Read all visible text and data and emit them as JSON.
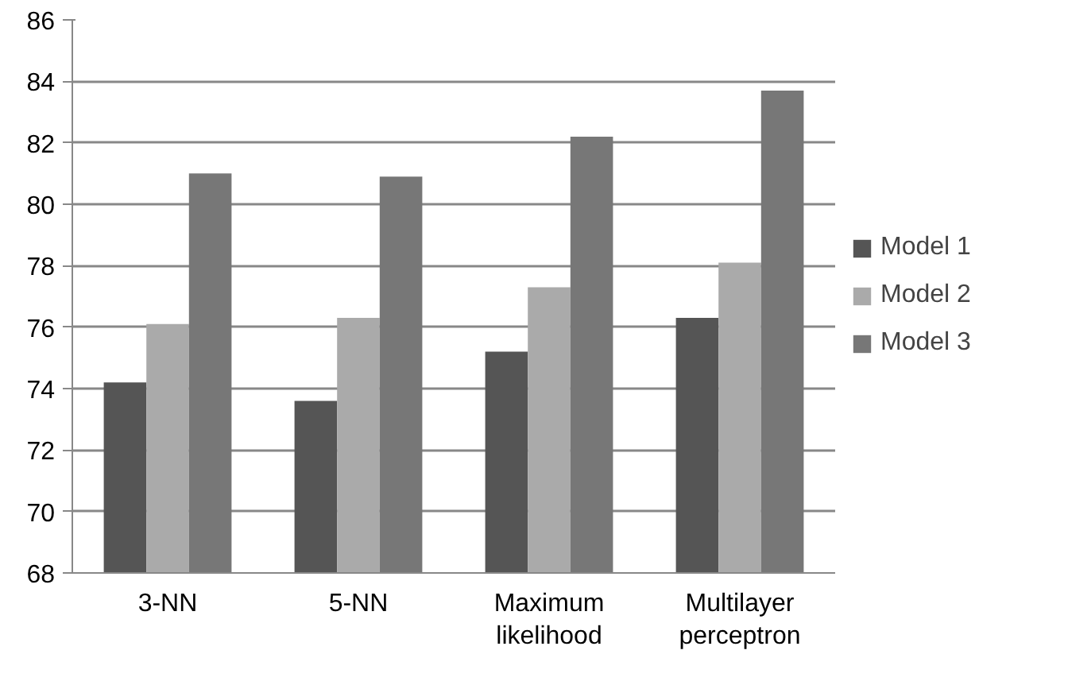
{
  "chart_data": {
    "type": "bar",
    "categories": [
      "3-NN",
      "5-NN",
      "Maximum likelihood",
      "Multilayer perceptron"
    ],
    "series": [
      {
        "name": "Model 1",
        "color": "#555555",
        "values": [
          74.2,
          73.6,
          75.2,
          76.3
        ]
      },
      {
        "name": "Model 2",
        "color": "#aaaaaa",
        "values": [
          76.1,
          76.3,
          77.3,
          78.1
        ]
      },
      {
        "name": "Model 3",
        "color": "#777777",
        "values": [
          81.0,
          80.9,
          82.2,
          83.7
        ]
      }
    ],
    "ylim": [
      68,
      86
    ],
    "yticks": [
      68,
      70,
      72,
      74,
      76,
      78,
      80,
      82,
      84,
      86
    ],
    "grid": "y",
    "legend": "right"
  }
}
